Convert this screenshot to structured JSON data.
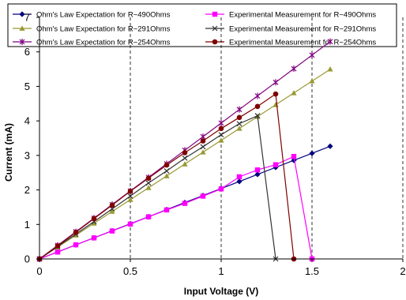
{
  "chart_data": {
    "type": "line",
    "xlabel": "Input Voltage (V)",
    "ylabel": "Current (mA)",
    "xlim": [
      0,
      2
    ],
    "ylim": [
      0,
      7
    ],
    "x_ticks": [
      "0",
      "0.5",
      "1",
      "1.5",
      "2"
    ],
    "y_ticks": [
      "0",
      "1",
      "2",
      "3",
      "4",
      "5",
      "6",
      "7"
    ],
    "grid": "vertical dashed",
    "legend_position": "top",
    "series": [
      {
        "name": "Ohm's Law  Expectation for R~490Ohms",
        "color": "#000080",
        "marker": "diamond",
        "x": [
          0,
          0.1,
          0.2,
          0.3,
          0.4,
          0.5,
          0.6,
          0.7,
          0.8,
          0.9,
          1.0,
          1.1,
          1.2,
          1.3,
          1.4,
          1.5,
          1.6
        ],
        "y": [
          0,
          0.204,
          0.408,
          0.612,
          0.816,
          1.02,
          1.224,
          1.429,
          1.633,
          1.837,
          2.041,
          2.245,
          2.449,
          2.653,
          2.857,
          3.061,
          3.265
        ]
      },
      {
        "name": "Experimental Measurement for R~490Ohms",
        "color": "#ff00ff",
        "marker": "square",
        "x": [
          0,
          0.1,
          0.2,
          0.3,
          0.4,
          0.5,
          0.6,
          0.7,
          0.8,
          0.9,
          1.0,
          1.1,
          1.2,
          1.3,
          1.4,
          1.5
        ],
        "y": [
          0,
          0.2,
          0.41,
          0.61,
          0.81,
          1.01,
          1.22,
          1.42,
          1.61,
          1.82,
          2.03,
          2.38,
          2.58,
          2.73,
          2.97,
          0
        ]
      },
      {
        "name": "Ohm's Law Expectation for R~291Ohms",
        "color": "#999933",
        "marker": "triangle",
        "x": [
          0,
          0.1,
          0.2,
          0.3,
          0.4,
          0.5,
          0.6,
          0.7,
          0.8,
          0.9,
          1.0,
          1.1,
          1.2,
          1.3,
          1.4,
          1.5,
          1.6
        ],
        "y": [
          0,
          0.344,
          0.687,
          1.031,
          1.375,
          1.718,
          2.062,
          2.405,
          2.749,
          3.093,
          3.436,
          3.78,
          4.124,
          4.467,
          4.811,
          5.155,
          5.498
        ]
      },
      {
        "name": "Experimental Measurement for R~291Ohms",
        "color": "#333333",
        "marker": "x",
        "x": [
          0,
          0.1,
          0.2,
          0.3,
          0.4,
          0.5,
          0.6,
          0.7,
          0.8,
          0.9,
          1.0,
          1.1,
          1.2,
          1.3
        ],
        "y": [
          0,
          0.36,
          0.72,
          1.08,
          1.45,
          1.82,
          2.2,
          2.55,
          2.92,
          3.25,
          3.6,
          3.92,
          4.15,
          0
        ]
      },
      {
        "name": "Ohm's Law Expectation for R~254Ohms",
        "color": "#800080",
        "marker": "star",
        "x": [
          0,
          0.1,
          0.2,
          0.3,
          0.4,
          0.5,
          0.6,
          0.7,
          0.8,
          0.9,
          1.0,
          1.1,
          1.2,
          1.3,
          1.4,
          1.5,
          1.6
        ],
        "y": [
          0,
          0.394,
          0.787,
          1.181,
          1.575,
          1.969,
          2.362,
          2.756,
          3.15,
          3.543,
          3.937,
          4.331,
          4.724,
          5.118,
          5.512,
          5.906,
          6.299
        ]
      },
      {
        "name": "Experimental Measurement for R~254Ohms",
        "color": "#800000",
        "marker": "circle",
        "x": [
          0,
          0.1,
          0.2,
          0.3,
          0.4,
          0.5,
          0.6,
          0.7,
          0.8,
          0.9,
          1.0,
          1.1,
          1.2,
          1.3,
          1.4
        ],
        "y": [
          0,
          0.38,
          0.77,
          1.17,
          1.56,
          1.96,
          2.34,
          2.72,
          3.08,
          3.42,
          3.78,
          4.1,
          4.42,
          4.78,
          0
        ]
      }
    ]
  }
}
